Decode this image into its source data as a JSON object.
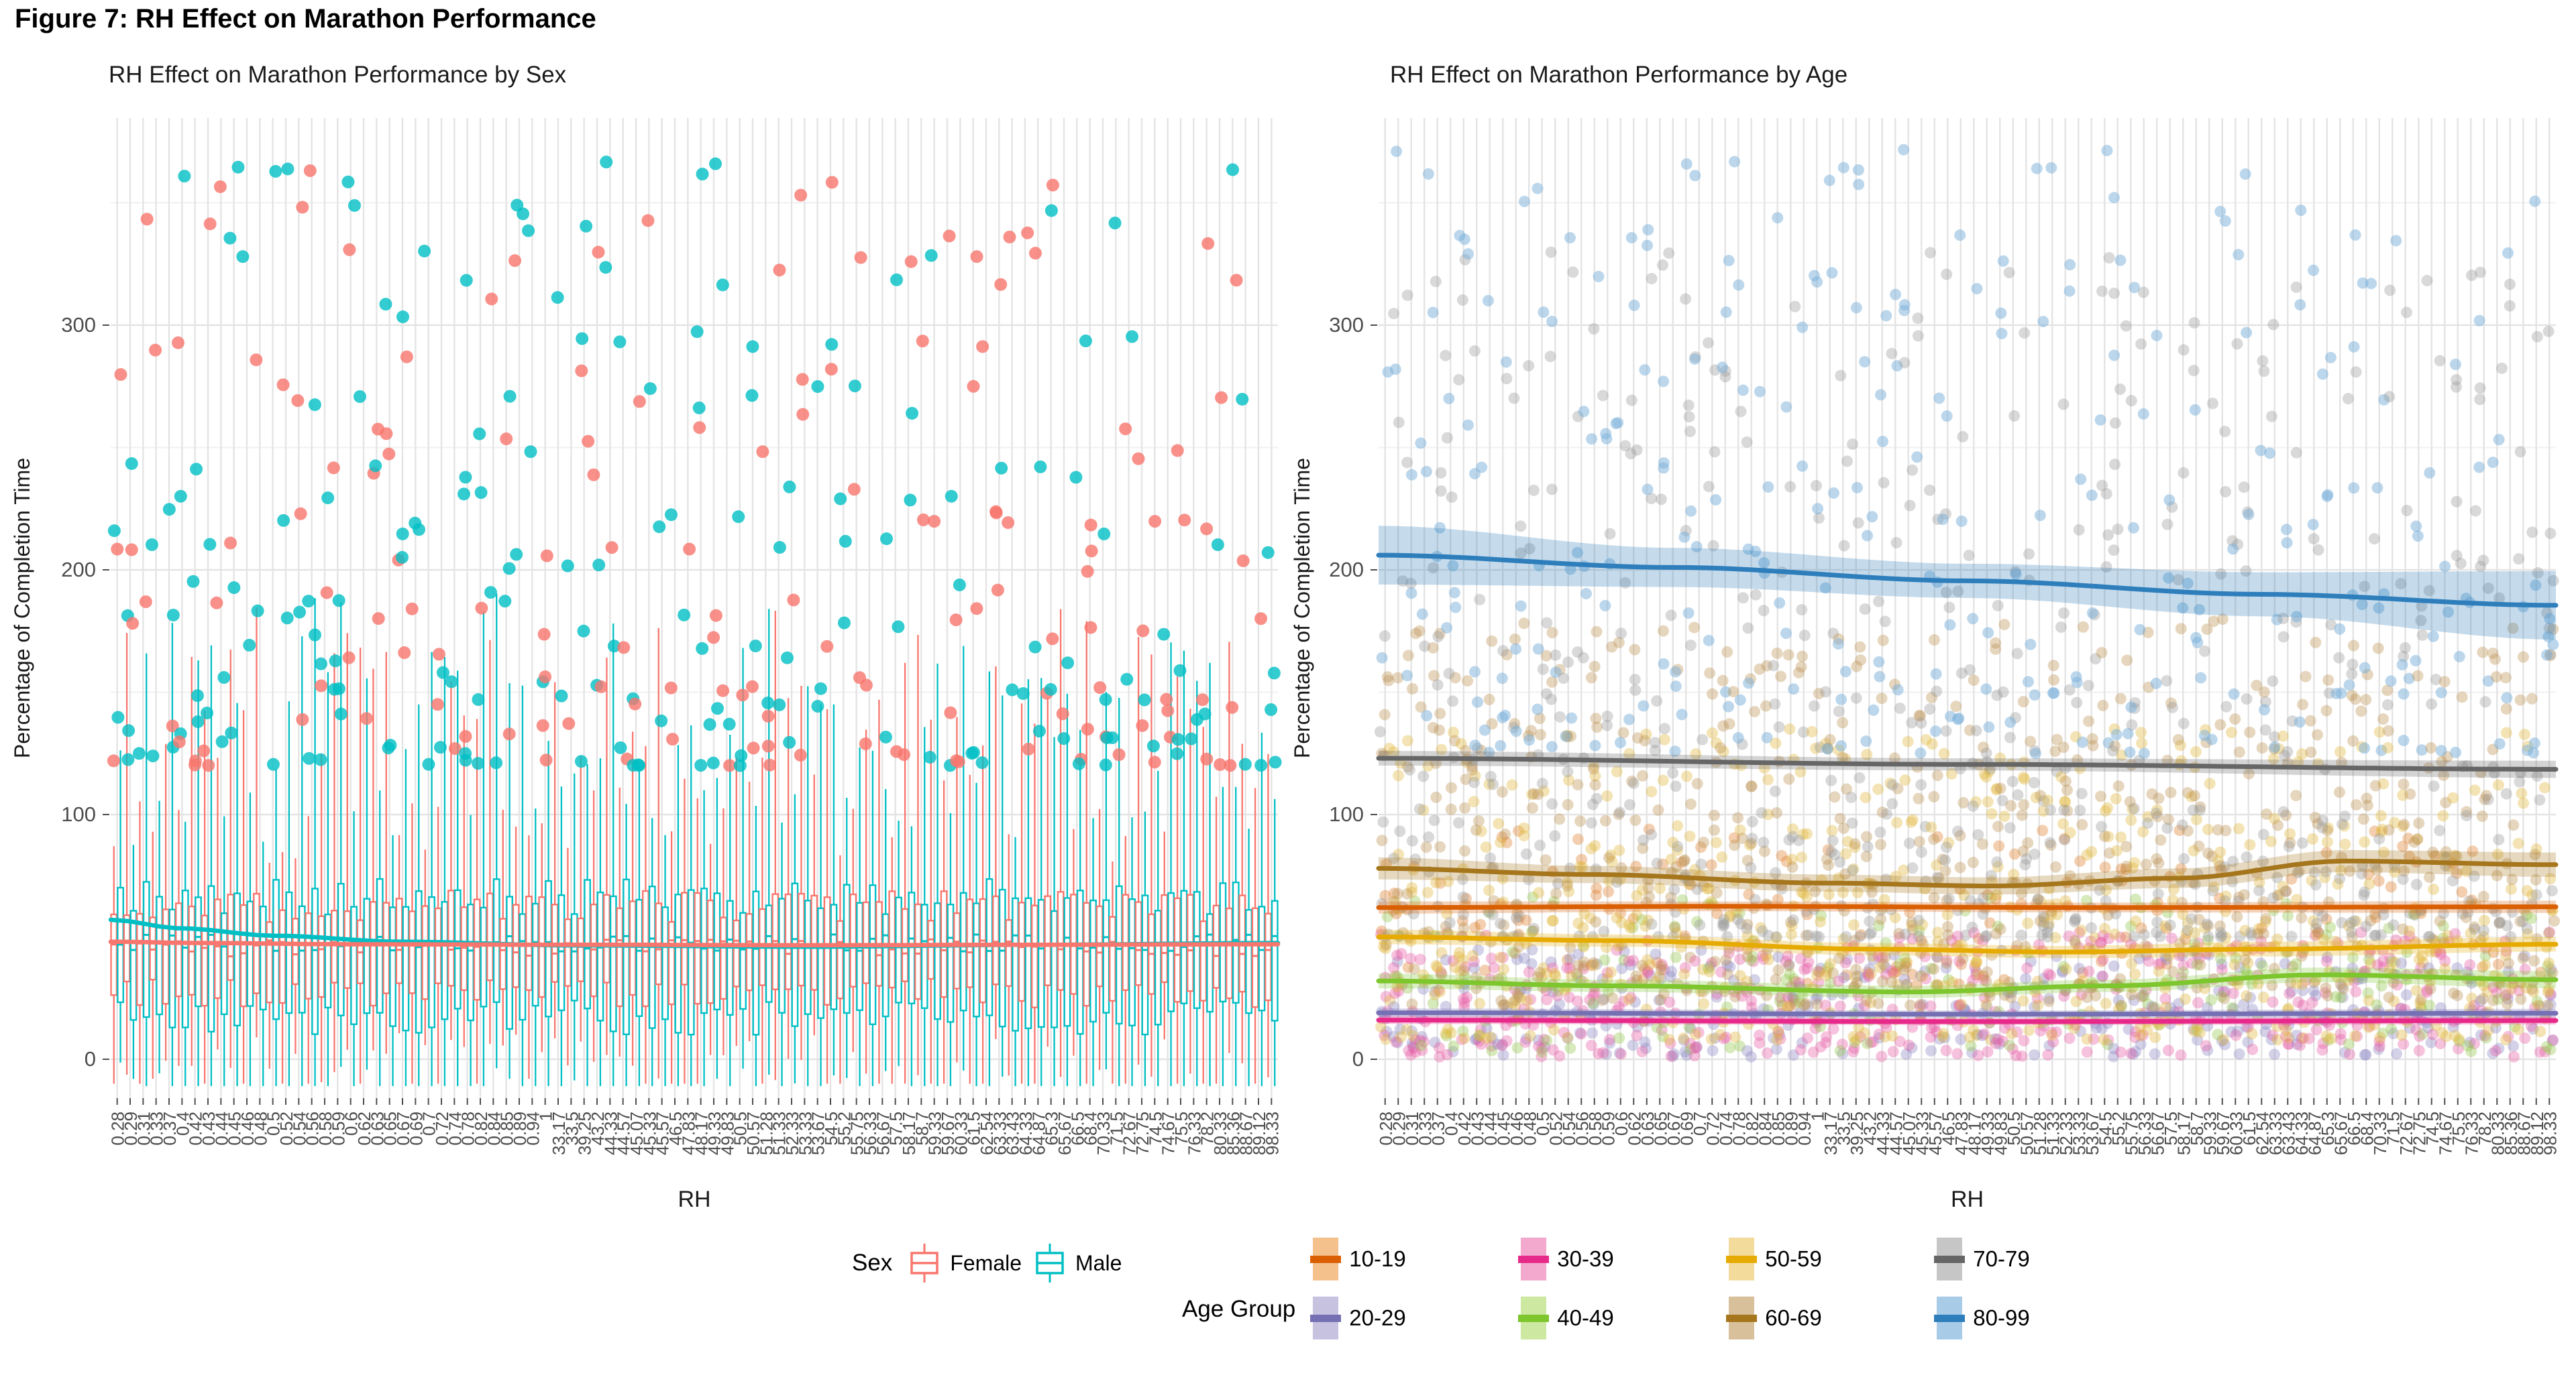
{
  "figure_title": "Figure 7: RH Effect on Marathon Performance",
  "axes": {
    "x_title": "RH",
    "y_title": "Percentage of Completion Time",
    "y_ticks": [
      0,
      100,
      200,
      300
    ],
    "y_minor": [
      50,
      150,
      250,
      350
    ],
    "y_range": [
      -14,
      383
    ]
  },
  "categories": [
    "0.28",
    "0.29",
    "0.31",
    "0.33",
    "0.37",
    "0.4",
    "0.42",
    "0.43",
    "0.44",
    "0.45",
    "0.46",
    "0.48",
    "0.5",
    "0.52",
    "0.54",
    "0.56",
    "0.58",
    "0.59",
    "0.6",
    "0.62",
    "0.63",
    "0.65",
    "0.67",
    "0.69",
    "0.7",
    "0.72",
    "0.74",
    "0.78",
    "0.82",
    "0.84",
    "0.85",
    "0.89",
    "0.94",
    "1",
    "33.17",
    "33.5",
    "39.25",
    "43.2",
    "44.33",
    "44.57",
    "45.07",
    "45.33",
    "45.57",
    "46.5",
    "47.83",
    "48.17",
    "49.33",
    "49.83",
    "50.5",
    "50.57",
    "51.28",
    "51.33",
    "52.33",
    "53.33",
    "53.67",
    "54.5",
    "55.2",
    "55.75",
    "56.33",
    "56.67",
    "57.5",
    "58.17",
    "58.7",
    "59.33",
    "59.67",
    "60.33",
    "61.5",
    "62.54",
    "63.33",
    "63.43",
    "64.33",
    "64.87",
    "65.3",
    "65.67",
    "66.5",
    "68.4",
    "70.33",
    "71.5",
    "72.67",
    "72.75",
    "74.5",
    "74.67",
    "75.5",
    "76.33",
    "78.2",
    "80.33",
    "85.36",
    "88.67",
    "89.12",
    "98.33"
  ],
  "left_panel": {
    "title": "RH Effect on Marathon Performance by Sex"
  },
  "right_panel": {
    "title": "RH Effect on Marathon Performance by Age"
  },
  "sex_legend": {
    "title": "Sex",
    "entries": [
      {
        "label": "Female",
        "color": "#F8766D"
      },
      {
        "label": "Male",
        "color": "#00BFC4"
      }
    ]
  },
  "age_legend": {
    "title": "Age Group",
    "entries": [
      {
        "label": "10-19",
        "line": "#D95F02",
        "fill": "#F4C08C"
      },
      {
        "label": "20-29",
        "line": "#7570B3",
        "fill": "#C6C2E0"
      },
      {
        "label": "30-39",
        "line": "#E7298A",
        "fill": "#F3A8CE"
      },
      {
        "label": "40-49",
        "line": "#7DC62E",
        "fill": "#CDE8A0"
      },
      {
        "label": "50-59",
        "line": "#E6AB02",
        "fill": "#F3DC9B"
      },
      {
        "label": "60-69",
        "line": "#A6761D",
        "fill": "#D8C09A"
      },
      {
        "label": "70-79",
        "line": "#666666",
        "fill": "#C6C6C6"
      },
      {
        "label": "80-99",
        "line": "#2E7EBC",
        "fill": "#A8CCE8"
      }
    ]
  },
  "render_seed": 20240707,
  "chart_data": [
    {
      "type": "boxplot-scatter",
      "title": "RH Effect on Marathon Performance by Sex",
      "xlabel": "RH",
      "ylabel": "Percentage of Completion Time",
      "x_categories_ref": "categories",
      "y_ticks": [
        0,
        100,
        200,
        300
      ],
      "ylim": [
        -14,
        383
      ],
      "grid": "major+minor",
      "legend_position": "bottom",
      "series": [
        {
          "name": "Female",
          "color": "#F8766D",
          "box": {
            "q1": [
              21,
              12
            ],
            "q3": [
              56,
              13
            ],
            "median": [
              42,
              7
            ],
            "whisker_above_q3": [
              22,
              95
            ],
            "whisker_pow": 1.4,
            "whisker_below_q1": [
              18,
              32
            ],
            "whisker_floor": -10
          },
          "smooth": {
            "x": [
              0,
              0.08,
              0.2,
              0.4,
              0.6,
              0.8,
              1
            ],
            "y": [
              48,
              47.5,
              47,
              46.8,
              46.6,
              46.8,
              47
            ]
          }
        },
        {
          "name": "Male",
          "color": "#00BFC4",
          "box": {
            "q1": [
              10,
              14
            ],
            "q3": [
              59,
              15
            ],
            "median": [
              44,
              7
            ],
            "whisker_above_q3": [
              25,
              100
            ],
            "whisker_pow": 1.4,
            "whisker_below_q1": [
              20,
              34
            ],
            "whisker_floor": -11
          },
          "smooth": {
            "x": [
              0,
              0.06,
              0.14,
              0.25,
              0.4,
              0.6,
              0.8,
              1
            ],
            "y": [
              57,
              53.5,
              50.5,
              48,
              46.5,
              46,
              46.8,
              47.5
            ]
          }
        }
      ],
      "outliers": {
        "per_category_min": 2,
        "per_category_max": 6,
        "value_min": 120,
        "value_max": 372,
        "skew_pow": 2.1,
        "male_share": 0.56,
        "point_radius": 9.5,
        "opacity": 0.8
      }
    },
    {
      "type": "scatter-smooth",
      "title": "RH Effect on Marathon Performance by Age",
      "xlabel": "RH",
      "ylabel": "Percentage of Completion Time",
      "x_categories_ref": "categories",
      "y_ticks": [
        0,
        100,
        200,
        300
      ],
      "ylim": [
        -14,
        383
      ],
      "grid": "major+minor",
      "legend_position": "bottom",
      "point_radius": 8.5,
      "groups": [
        {
          "name": "10-19",
          "line": "#D95F02",
          "fill": "#F4C08C",
          "point": "#E0802F",
          "points_per_cat": [
            0,
            3
          ],
          "value_range": [
            30,
            95
          ],
          "skew_pow": 1.0,
          "point_opacity": 0.38,
          "smooth": {
            "x": [
              0,
              0.3,
              0.6,
              1
            ],
            "y": [
              62,
              62.5,
              62,
              62.3
            ],
            "ribbon": [
              2.5,
              2,
              2,
              2.5
            ]
          }
        },
        {
          "name": "20-29",
          "line": "#7570B3",
          "fill": "#C6C2E0",
          "point": "#8F89C4",
          "points_per_cat": [
            2,
            5
          ],
          "value_range": [
            1,
            45
          ],
          "skew_pow": 1.2,
          "point_opacity": 0.38,
          "smooth": {
            "x": [
              0,
              0.5,
              1
            ],
            "y": [
              19,
              18.4,
              18.8
            ],
            "ribbon": [
              1.8,
              1.5,
              1.8
            ]
          }
        },
        {
          "name": "30-39",
          "line": "#E7298A",
          "fill": "#F3A8CE",
          "point": "#E85FA6",
          "points_per_cat": [
            3,
            7
          ],
          "value_range": [
            1,
            52
          ],
          "skew_pow": 1.2,
          "point_opacity": 0.38,
          "smooth": {
            "x": [
              0,
              0.5,
              1
            ],
            "y": [
              16,
              15.4,
              15.8
            ],
            "ribbon": [
              1.6,
              1.4,
              1.6
            ]
          }
        },
        {
          "name": "40-49",
          "line": "#7DC62E",
          "fill": "#CDE8A0",
          "point": "#97C94F",
          "points_per_cat": [
            1,
            3
          ],
          "value_range": [
            3,
            68
          ],
          "skew_pow": 1.2,
          "point_opacity": 0.38,
          "smooth": {
            "x": [
              0,
              0.2,
              0.45,
              0.62,
              0.8,
              1
            ],
            "y": [
              32,
              30,
              27.5,
              30,
              34.5,
              32.5
            ],
            "ribbon": [
              3,
              2.5,
              2.5,
              2.5,
              3,
              3.5
            ]
          }
        },
        {
          "name": "50-59",
          "line": "#E6AB02",
          "fill": "#F3DC9B",
          "point": "#E3B93C",
          "points_per_cat": [
            5,
            9
          ],
          "value_range": [
            8,
            135
          ],
          "skew_pow": 1.3,
          "point_opacity": 0.38,
          "smooth": {
            "x": [
              0,
              0.2,
              0.42,
              0.58,
              0.75,
              1
            ],
            "y": [
              50,
              48.5,
              45,
              43.8,
              45,
              47
            ],
            "ribbon": [
              3,
              2.5,
              2.5,
              2.5,
              3,
              3
            ]
          }
        },
        {
          "name": "60-69",
          "line": "#A6761D",
          "fill": "#D8C09A",
          "point": "#BC9254",
          "points_per_cat": [
            5,
            9
          ],
          "value_range": [
            22,
            180
          ],
          "skew_pow": 1.3,
          "point_opacity": 0.38,
          "smooth": {
            "x": [
              0,
              0.18,
              0.38,
              0.52,
              0.68,
              0.82,
              1
            ],
            "y": [
              78,
              75.5,
              72,
              70.8,
              74,
              81,
              79.5
            ],
            "ribbon": [
              4.5,
              3.5,
              3.5,
              3.5,
              4,
              4.5,
              5
            ]
          }
        },
        {
          "name": "70-79",
          "line": "#666666",
          "fill": "#C6C6C6",
          "point": "#9A9A9A",
          "points_per_cat": [
            5,
            9
          ],
          "value_range": [
            50,
            330
          ],
          "skew_pow": 2.0,
          "point_opacity": 0.38,
          "smooth": {
            "x": [
              0,
              0.5,
              1
            ],
            "y": [
              123,
              120.5,
              118.5
            ],
            "ribbon": [
              3,
              2.5,
              3.5
            ]
          }
        },
        {
          "name": "80-99",
          "line": "#2E7EBC",
          "fill": "#A8CCE8",
          "point": "#7AAFD9",
          "points_per_cat": [
            2,
            5
          ],
          "value_range": [
            125,
            372
          ],
          "skew_pow": 1.6,
          "point_opacity": 0.5,
          "smooth": {
            "x": [
              0,
              0.25,
              0.5,
              0.75,
              1
            ],
            "y": [
              206,
              201,
              195.5,
              190,
              185.5
            ],
            "ribbon": [
              12,
              8,
              7,
              9,
              14
            ]
          }
        }
      ]
    }
  ]
}
